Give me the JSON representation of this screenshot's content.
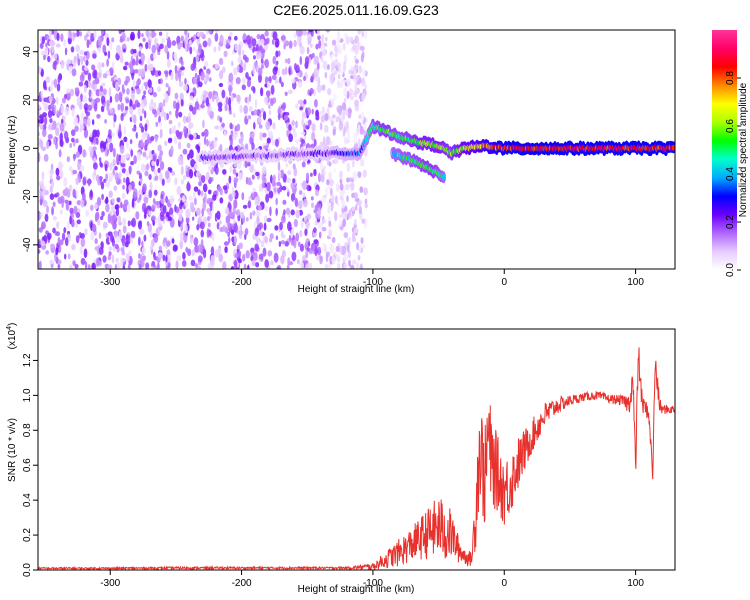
{
  "title": "C2E6.2025.011.16.09.G23",
  "chart_data": [
    {
      "type": "heatmap",
      "xlabel": "Height of straight line (km)",
      "ylabel": "Frequency (Hz)",
      "xlim": [
        -355,
        130
      ],
      "ylim": [
        -50,
        49
      ],
      "xticks": [
        -300,
        -200,
        -100,
        0,
        100
      ],
      "yticks": [
        -40,
        -20,
        0,
        20,
        40
      ],
      "colorbar": {
        "label": "Normalized spectral amplitude",
        "range": [
          0,
          1
        ],
        "ticks": [
          "0.0",
          "0.2",
          "0.4",
          "0.6",
          "0.8"
        ],
        "colors": [
          "#ffffff",
          "#e6ccff",
          "#b066ff",
          "#6a00ff",
          "#0000ff",
          "#00aaff",
          "#00ffcc",
          "#00ff00",
          "#aaff00",
          "#ffff00",
          "#ff8800",
          "#ff0000",
          "#ff0066",
          "#ff3399"
        ]
      },
      "noise_region": {
        "x_range": [
          -355,
          -105
        ],
        "freq_range": [
          -50,
          49
        ],
        "amplitude_approx": 0.1
      },
      "ridge": [
        {
          "x": -230,
          "freq": -4,
          "amplitude": 0.2
        },
        {
          "x": -180,
          "freq": -3,
          "amplitude": 0.18
        },
        {
          "x": -140,
          "freq": -2,
          "amplitude": 0.22
        },
        {
          "x": -110,
          "freq": -2,
          "amplitude": 0.3
        },
        {
          "x": -100,
          "freq": 9,
          "amplitude": 0.5
        },
        {
          "x": -90,
          "freq": 7,
          "amplitude": 0.55
        },
        {
          "x": -80,
          "freq": 5,
          "amplitude": 0.5
        },
        {
          "x": -70,
          "freq": 3,
          "amplitude": 0.55
        },
        {
          "x": -60,
          "freq": 2,
          "amplitude": 0.6
        },
        {
          "x": -50,
          "freq": 1,
          "amplitude": 0.6
        },
        {
          "x": -40,
          "freq": -2,
          "amplitude": 0.55
        },
        {
          "x": -30,
          "freq": 0,
          "amplitude": 0.65
        },
        {
          "x": -15,
          "freq": 1,
          "amplitude": 0.75
        },
        {
          "x": 0,
          "freq": 0,
          "amplitude": 0.85
        },
        {
          "x": 25,
          "freq": 0,
          "amplitude": 0.85
        },
        {
          "x": 50,
          "freq": 0,
          "amplitude": 0.85
        },
        {
          "x": 75,
          "freq": 0,
          "amplitude": 0.85
        },
        {
          "x": 100,
          "freq": 0,
          "amplitude": 0.85
        },
        {
          "x": 130,
          "freq": 0,
          "amplitude": 0.85
        }
      ],
      "branch": [
        {
          "x": -85,
          "freq": -2,
          "amplitude": 0.45
        },
        {
          "x": -70,
          "freq": -5,
          "amplitude": 0.5
        },
        {
          "x": -55,
          "freq": -9,
          "amplitude": 0.55
        },
        {
          "x": -45,
          "freq": -12,
          "amplitude": 0.45
        }
      ]
    },
    {
      "type": "line",
      "xlabel": "Height of straight line (km)",
      "ylabel": "SNR (10 * v/v)",
      "y_multiplier": "(x10",
      "y_multiplier_exp": "4",
      "y_multiplier_close": ")",
      "xlim": [
        -355,
        130
      ],
      "ylim": [
        0,
        1.38
      ],
      "xticks": [
        -300,
        -200,
        -100,
        0,
        100
      ],
      "yticks": [
        0.0,
        0.2,
        0.4,
        0.6,
        0.8,
        1.0,
        1.2
      ],
      "series": [
        {
          "color": "#e8312c",
          "x": [
            -355,
            -300,
            -250,
            -200,
            -150,
            -120,
            -100,
            -90,
            -80,
            -70,
            -60,
            -50,
            -45,
            -40,
            -35,
            -30,
            -25,
            -22,
            -20,
            -18,
            -15,
            -12,
            -10,
            -5,
            0,
            5,
            10,
            20,
            30,
            40,
            50,
            60,
            70,
            80,
            90,
            95,
            98,
            100,
            102,
            105,
            110,
            113,
            115,
            118,
            120,
            125,
            130
          ],
          "y": [
            0.01,
            0.01,
            0.012,
            0.012,
            0.012,
            0.012,
            0.02,
            0.06,
            0.1,
            0.15,
            0.2,
            0.25,
            0.22,
            0.2,
            0.12,
            0.08,
            0.06,
            0.3,
            0.6,
            0.7,
            0.5,
            0.8,
            0.62,
            0.55,
            0.45,
            0.5,
            0.6,
            0.75,
            0.88,
            0.94,
            0.97,
            0.99,
            1.0,
            0.98,
            0.97,
            0.95,
            1.1,
            0.55,
            1.25,
            0.95,
            0.9,
            0.55,
            1.2,
            0.95,
            0.92,
            0.92,
            0.92
          ],
          "noise_amplitude": [
            0.005,
            0.005,
            0.006,
            0.006,
            0.006,
            0.006,
            0.02,
            0.05,
            0.08,
            0.1,
            0.14,
            0.18,
            0.18,
            0.14,
            0.08,
            0.05,
            0.04,
            0.2,
            0.3,
            0.3,
            0.28,
            0.3,
            0.26,
            0.22,
            0.2,
            0.18,
            0.16,
            0.1,
            0.08,
            0.05,
            0.03,
            0.025,
            0.025,
            0.025,
            0.03,
            0.06,
            0.1,
            0.1,
            0.1,
            0.06,
            0.04,
            0.06,
            0.1,
            0.05,
            0.03,
            0.025,
            0.025
          ]
        }
      ]
    }
  ]
}
